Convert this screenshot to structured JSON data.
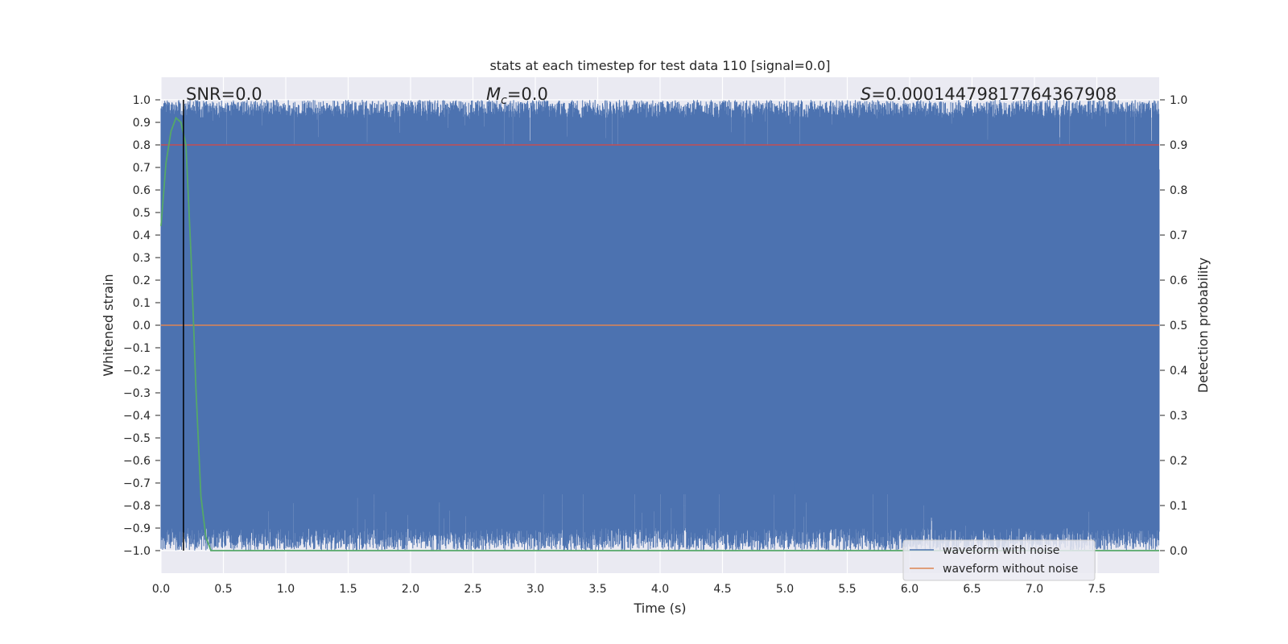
{
  "chart_data": {
    "type": "line",
    "title": "stats at each timestep for test data 110 [signal=0.0]",
    "xlabel": "Time (s)",
    "ylabel": "Whitened strain",
    "y2label": "Detection probability",
    "xlim": [
      0.0,
      8.0
    ],
    "ylim": [
      -1.1,
      1.1
    ],
    "y2lim": [
      -0.05,
      1.05
    ],
    "xticks": [
      "0.0",
      "0.5",
      "1.0",
      "1.5",
      "2.0",
      "2.5",
      "3.0",
      "3.5",
      "4.0",
      "4.5",
      "5.0",
      "5.5",
      "6.0",
      "6.5",
      "7.0",
      "7.5"
    ],
    "yticks": [
      "1.0",
      "0.9",
      "0.8",
      "0.7",
      "0.6",
      "0.5",
      "0.4",
      "0.3",
      "0.2",
      "0.1",
      "0.0",
      "−0.1",
      "−0.2",
      "−0.3",
      "−0.4",
      "−0.5",
      "−0.6",
      "−0.7",
      "−0.8",
      "−0.9",
      "−1.0"
    ],
    "y2ticks": [
      "1.0",
      "0.9",
      "0.8",
      "0.7",
      "0.6",
      "0.5",
      "0.4",
      "0.3",
      "0.2",
      "0.1",
      "0.0"
    ],
    "grid": true,
    "legend_position": "lower-right",
    "annotations": {
      "snr": "SNR=0.0",
      "mc_symbol": "M",
      "mc_sub": "c",
      "mc_value": "=0.0",
      "s_symbol": "S",
      "s_value": "=0.00014479817764367908"
    },
    "series": [
      {
        "name": "waveform with noise",
        "color": "#4c72b0",
        "style": "dense noise filling roughly -1.0 to 1.0 over the full time range",
        "y_range": [
          -1.0,
          1.0
        ]
      },
      {
        "name": "waveform without noise",
        "color": "#dd8452",
        "x": [
          0.0,
          8.0
        ],
        "y": [
          0.0,
          0.0
        ]
      },
      {
        "color": "#55a868",
        "axis": "right",
        "x": [
          0.0,
          0.04,
          0.08,
          0.12,
          0.16,
          0.2,
          0.24,
          0.28,
          0.32,
          0.36,
          0.4,
          0.45,
          8.0
        ],
        "y": [
          0.72,
          0.86,
          0.93,
          0.96,
          0.95,
          0.9,
          0.66,
          0.36,
          0.12,
          0.03,
          0.0,
          0.0,
          0.0
        ]
      },
      {
        "color": "#c44e52",
        "x": [
          0.0,
          8.0
        ],
        "y": [
          0.8,
          0.8
        ]
      },
      {
        "color": "#000000",
        "type": "vline",
        "x": [
          0.18,
          0.18
        ],
        "y": [
          -1.0,
          1.0
        ]
      }
    ]
  }
}
